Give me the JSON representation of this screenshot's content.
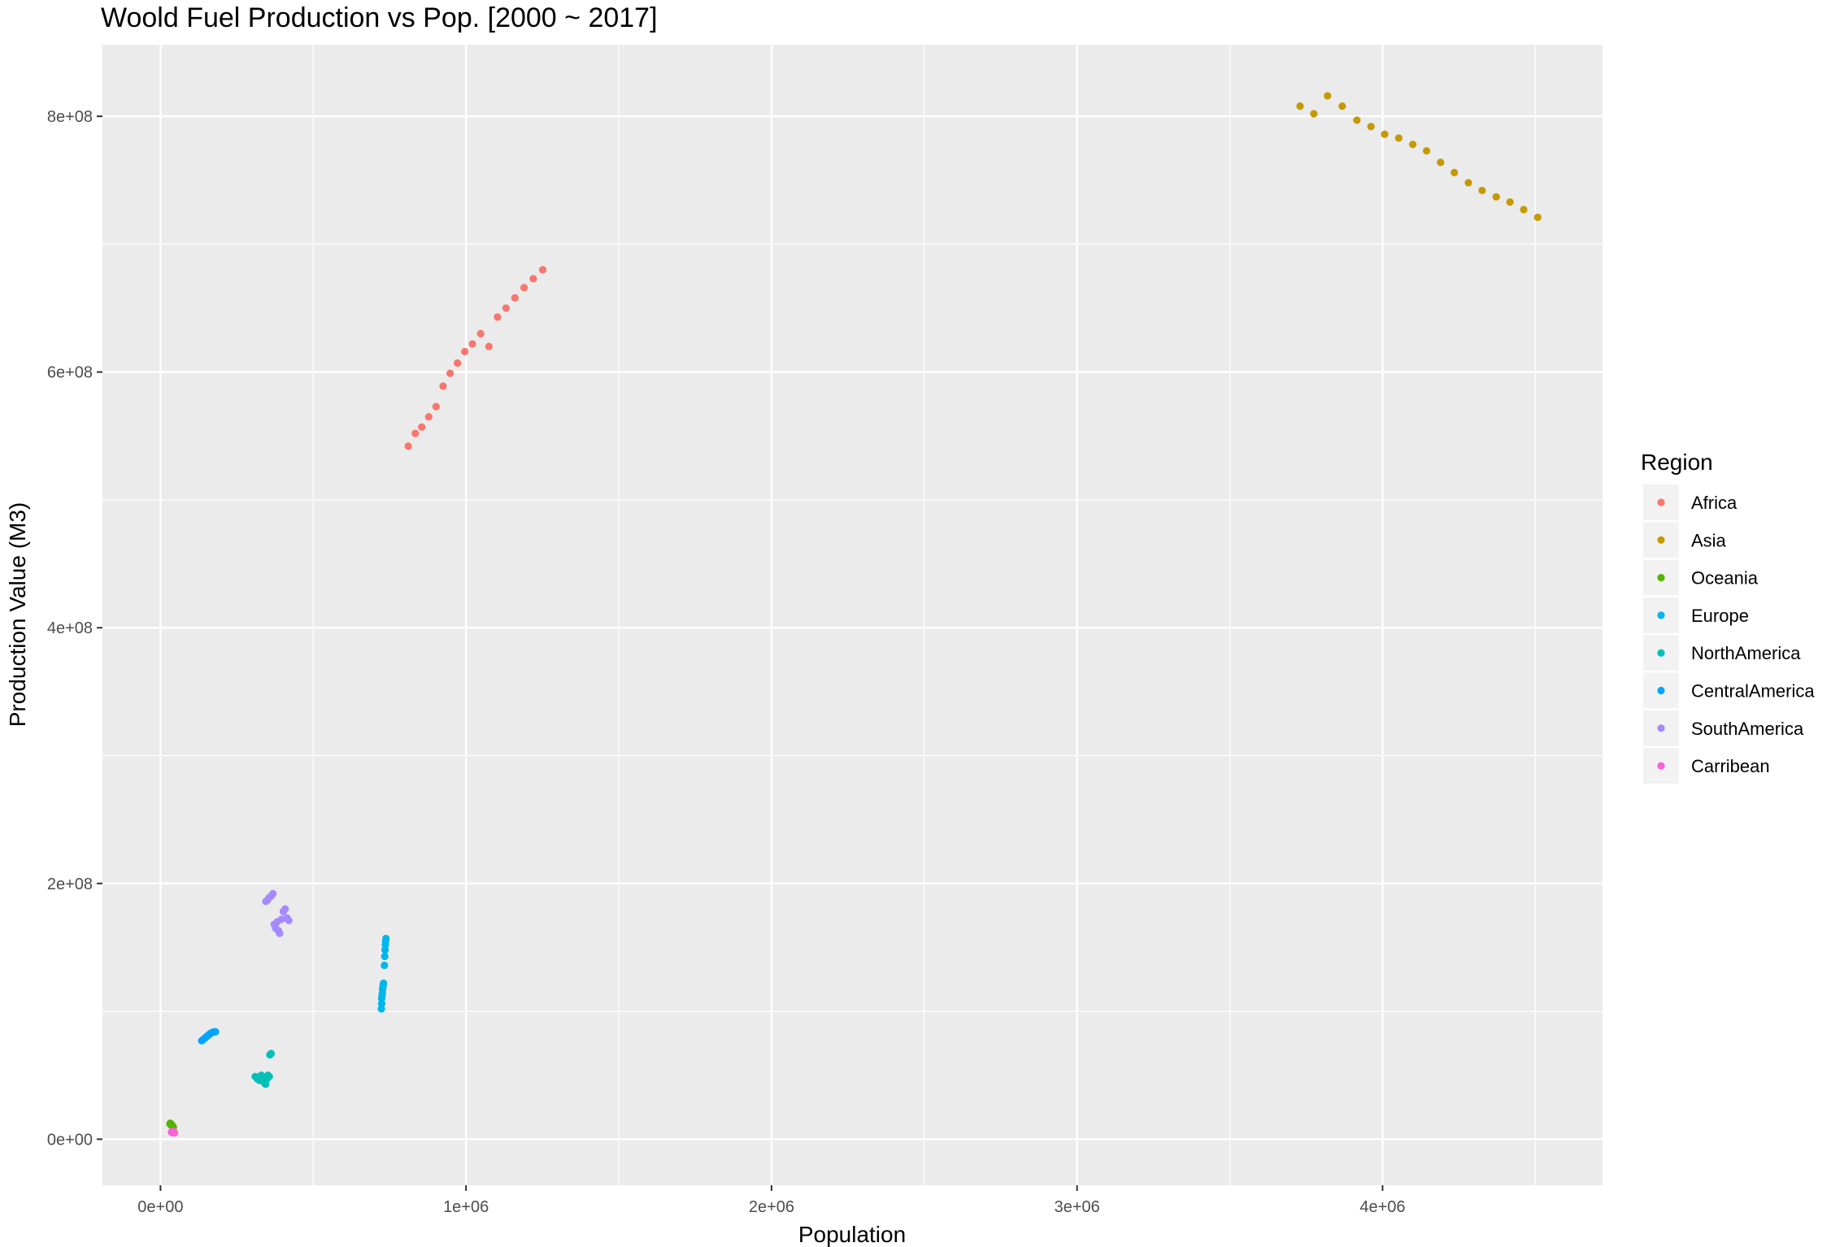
{
  "chart_data": {
    "type": "scatter",
    "title": "Woold Fuel Production vs Pop. [2000 ~ 2017]",
    "xlabel": "Population",
    "ylabel": "Production Value (M3)",
    "xlim": [
      -190000,
      4720000
    ],
    "ylim": [
      -36000000,
      856000000
    ],
    "x_ticks": [
      0,
      1000000,
      2000000,
      3000000,
      4000000
    ],
    "x_tick_labels": [
      "0e+00",
      "1e+06",
      "2e+06",
      "3e+06",
      "4e+06"
    ],
    "y_ticks": [
      0,
      200000000,
      400000000,
      600000000,
      800000000
    ],
    "y_tick_labels": [
      "0e+00",
      "2e+08",
      "4e+08",
      "6e+08",
      "8e+08"
    ],
    "grid": true,
    "legend": {
      "title": "Region",
      "position": "right"
    },
    "series": [
      {
        "name": "Africa",
        "color": "#F8766D",
        "points": [
          [
            811000,
            542000000
          ],
          [
            834000,
            552000000
          ],
          [
            855000,
            557000000
          ],
          [
            878000,
            565000000
          ],
          [
            902000,
            573000000
          ],
          [
            925000,
            589000000
          ],
          [
            948000,
            599000000
          ],
          [
            972000,
            607000000
          ],
          [
            996000,
            616000000
          ],
          [
            1021000,
            622000000
          ],
          [
            1048000,
            630000000
          ],
          [
            1075000,
            620000000
          ],
          [
            1103000,
            643000000
          ],
          [
            1131000,
            650000000
          ],
          [
            1160000,
            658000000
          ],
          [
            1190000,
            666000000
          ],
          [
            1220000,
            673000000
          ],
          [
            1251000,
            680000000
          ]
        ]
      },
      {
        "name": "Asia",
        "color": "#C49A00",
        "points": [
          [
            3730000,
            808000000
          ],
          [
            3775000,
            802000000
          ],
          [
            3820000,
            816000000
          ],
          [
            3868000,
            808000000
          ],
          [
            3916000,
            797000000
          ],
          [
            3962000,
            792000000
          ],
          [
            4007000,
            786000000
          ],
          [
            4053000,
            783000000
          ],
          [
            4099000,
            778000000
          ],
          [
            4144000,
            773000000
          ],
          [
            4190000,
            764000000
          ],
          [
            4235000,
            756000000
          ],
          [
            4281000,
            748000000
          ],
          [
            4326000,
            742000000
          ],
          [
            4372000,
            737000000
          ],
          [
            4417000,
            733000000
          ],
          [
            4462000,
            727000000
          ],
          [
            4508000,
            721000000
          ]
        ]
      },
      {
        "name": "Oceania",
        "color": "#53B400",
        "points": [
          [
            31000,
            12000000
          ],
          [
            32000,
            12500000
          ],
          [
            33000,
            12000000
          ],
          [
            34000,
            11500000
          ],
          [
            35000,
            11000000
          ],
          [
            36000,
            11500000
          ],
          [
            37000,
            11000000
          ],
          [
            38000,
            10500000
          ],
          [
            39000,
            10500000
          ],
          [
            40000,
            10000000
          ],
          [
            41000,
            9500000
          ],
          [
            42000,
            9500000
          ]
        ]
      },
      {
        "name": "Europe",
        "color": "#00B6EB",
        "points": [
          [
            723000,
            102000000
          ],
          [
            724000,
            106000000
          ],
          [
            724000,
            110000000
          ],
          [
            725000,
            112000000
          ],
          [
            726000,
            114000000
          ],
          [
            727000,
            117000000
          ],
          [
            728000,
            119000000
          ],
          [
            729000,
            121000000
          ],
          [
            730000,
            122000000
          ],
          [
            733000,
            136000000
          ],
          [
            734000,
            143000000
          ],
          [
            735000,
            148000000
          ],
          [
            736000,
            152000000
          ],
          [
            737000,
            155000000
          ],
          [
            738000,
            157000000
          ]
        ]
      },
      {
        "name": "NorthAmerica",
        "color": "#00C0B8",
        "points": [
          [
            310000,
            49000000
          ],
          [
            318000,
            47000000
          ],
          [
            324000,
            46000000
          ],
          [
            330000,
            50000000
          ],
          [
            336000,
            48000000
          ],
          [
            340000,
            44000000
          ],
          [
            344000,
            43000000
          ],
          [
            348000,
            47000000
          ],
          [
            352000,
            50000000
          ],
          [
            356000,
            49000000
          ],
          [
            358000,
            66000000
          ],
          [
            362000,
            67000000
          ]
        ]
      },
      {
        "name": "CentralAmerica",
        "color": "#00A5FF",
        "points": [
          [
            135000,
            77000000
          ],
          [
            140000,
            78000000
          ],
          [
            145000,
            79000000
          ],
          [
            150000,
            80000000
          ],
          [
            155000,
            81000000
          ],
          [
            160000,
            82000000
          ],
          [
            165000,
            83000000
          ],
          [
            170000,
            83500000
          ],
          [
            175000,
            84000000
          ],
          [
            180000,
            84000000
          ]
        ]
      },
      {
        "name": "SouthAmerica",
        "color": "#A58AFF",
        "points": [
          [
            345000,
            186000000
          ],
          [
            350000,
            187000000
          ],
          [
            356000,
            189000000
          ],
          [
            362000,
            190000000
          ],
          [
            368000,
            192000000
          ],
          [
            372000,
            168000000
          ],
          [
            377000,
            165000000
          ],
          [
            382000,
            170000000
          ],
          [
            386000,
            163000000
          ],
          [
            390000,
            161000000
          ],
          [
            396000,
            172000000
          ],
          [
            402000,
            178000000
          ],
          [
            408000,
            180000000
          ],
          [
            414000,
            173000000
          ],
          [
            420000,
            171000000
          ]
        ]
      },
      {
        "name": "Carribean",
        "color": "#FB61D7",
        "points": [
          [
            36000,
            5500000
          ],
          [
            38000,
            6000000
          ],
          [
            40000,
            5000000
          ],
          [
            42000,
            5500000
          ],
          [
            44000,
            6000000
          ],
          [
            46000,
            5000000
          ]
        ]
      }
    ]
  }
}
